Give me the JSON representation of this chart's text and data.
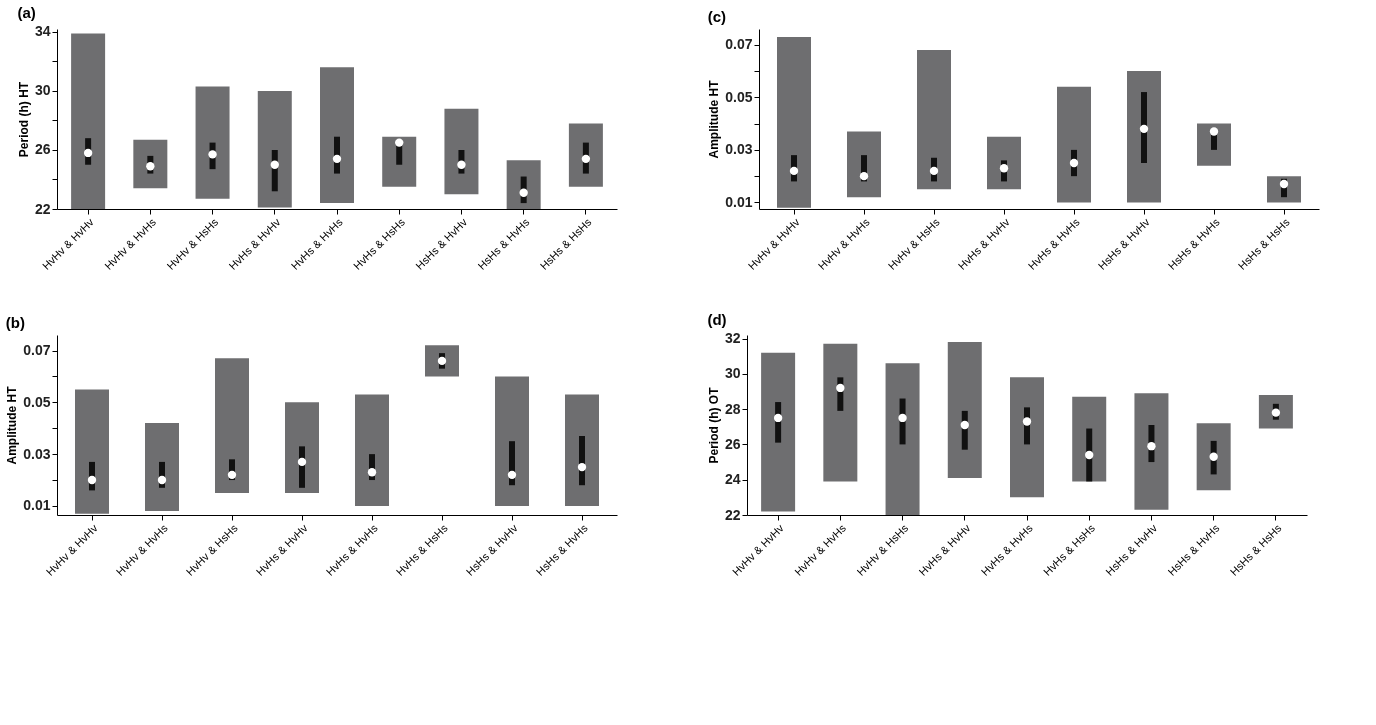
{
  "chart_data": [
    {
      "type": "box",
      "title": "(a)",
      "ylabel": "Period (h) HT",
      "grid": false,
      "categories": [
        "HvHv & HvHv",
        "HvHv & HvHs",
        "HvHv & HsHs",
        "HvHs & HvHv",
        "HvHs & HvHs",
        "HvHs & HsHs",
        "HsHs & HvHv",
        "HsHs & HvHs",
        "HsHs & HsHs"
      ],
      "ylim": [
        22,
        34.2
      ],
      "yticks": [
        22,
        {
          "value": 24,
          "label": null
        },
        26,
        {
          "value": 28,
          "label": null
        },
        30,
        {
          "value": 32,
          "label": null
        },
        34
      ],
      "series": [
        {
          "color": "#111111",
          "boxes": [
            {
              "low": 21.8,
              "q1": 25.0,
              "median": 25.8,
              "q3": 26.8,
              "high": 33.9
            },
            {
              "low": 23.4,
              "q1": 24.4,
              "median": 24.9,
              "q3": 25.6,
              "high": 26.7
            },
            {
              "low": 22.7,
              "q1": 24.7,
              "median": 25.7,
              "q3": 26.5,
              "high": 30.3
            },
            {
              "low": 22.1,
              "q1": 23.2,
              "median": 25.0,
              "q3": 26.0,
              "high": 30.0
            },
            {
              "low": 22.4,
              "q1": 24.4,
              "median": 25.4,
              "q3": 26.9,
              "high": 31.6
            },
            {
              "low": 23.5,
              "q1": 25.0,
              "median": 26.5,
              "q3": 26.7,
              "high": 26.9
            },
            {
              "low": 23.0,
              "q1": 24.4,
              "median": 25.0,
              "q3": 26.0,
              "high": 28.8
            },
            {
              "low": 22.0,
              "q1": 22.4,
              "median": 23.1,
              "q3": 24.2,
              "high": 25.3
            },
            {
              "low": 23.5,
              "q1": 24.4,
              "median": 25.4,
              "q3": 26.5,
              "high": 27.8
            }
          ]
        }
      ]
    },
    {
      "type": "box",
      "title": "(c)",
      "ylabel": "Amplitude HT",
      "grid": false,
      "categories": [
        "HvHv & HvHv",
        "HvHv & HvHs",
        "HvHv & HsHs",
        "HvHs & HvHv",
        "HvHs & HvHs",
        "HsHs & HvHv",
        "HsHs & HvHs",
        "HsHs & HsHs"
      ],
      "ylim": [
        0.0075,
        0.076
      ],
      "yticks": [
        0.01,
        {
          "value": 0.02,
          "label": null
        },
        0.03,
        {
          "value": 0.04,
          "label": null
        },
        0.05,
        {
          "value": 0.06,
          "label": null
        },
        0.07
      ],
      "series": [
        {
          "color": "#111111",
          "boxes": [
            {
              "low": 0.008,
              "q1": 0.018,
              "median": 0.022,
              "q3": 0.028,
              "high": 0.073
            },
            {
              "low": 0.012,
              "q1": 0.018,
              "median": 0.02,
              "q3": 0.028,
              "high": 0.037
            },
            {
              "low": 0.015,
              "q1": 0.018,
              "median": 0.022,
              "q3": 0.027,
              "high": 0.068
            },
            {
              "low": 0.015,
              "q1": 0.018,
              "median": 0.023,
              "q3": 0.026,
              "high": 0.035
            },
            {
              "low": 0.01,
              "q1": 0.02,
              "median": 0.025,
              "q3": 0.03,
              "high": 0.054
            },
            {
              "low": 0.01,
              "q1": 0.025,
              "median": 0.038,
              "q3": 0.052,
              "high": 0.06
            },
            {
              "low": 0.024,
              "q1": 0.03,
              "median": 0.037,
              "q3": 0.038,
              "high": 0.04
            },
            {
              "low": 0.01,
              "q1": 0.012,
              "median": 0.017,
              "q3": 0.019,
              "high": 0.02
            }
          ]
        }
      ]
    },
    {
      "type": "box",
      "title": "(b)",
      "ylabel": "Amplitude HT",
      "grid": false,
      "categories": [
        "HvHv & HvHv",
        "HvHv & HvHs",
        "HvHv & HsHs",
        "HvHs & HvHv",
        "HvHs & HvHs",
        "HvHs & HsHs",
        "HsHs & HvHv",
        "HsHs & HvHs"
      ],
      "ylim": [
        0.0065,
        0.076
      ],
      "yticks": [
        0.01,
        {
          "value": 0.02,
          "label": null
        },
        0.03,
        {
          "value": 0.04,
          "label": null
        },
        0.05,
        {
          "value": 0.06,
          "label": null
        },
        0.07
      ],
      "series": [
        {
          "color": "#111111",
          "boxes": [
            {
              "low": 0.007,
              "q1": 0.016,
              "median": 0.02,
              "q3": 0.027,
              "high": 0.055
            },
            {
              "low": 0.008,
              "q1": 0.017,
              "median": 0.02,
              "q3": 0.027,
              "high": 0.042
            },
            {
              "low": 0.015,
              "q1": 0.02,
              "median": 0.022,
              "q3": 0.028,
              "high": 0.067
            },
            {
              "low": 0.015,
              "q1": 0.017,
              "median": 0.027,
              "q3": 0.033,
              "high": 0.05
            },
            {
              "low": 0.01,
              "q1": 0.02,
              "median": 0.023,
              "q3": 0.03,
              "high": 0.053
            },
            {
              "low": 0.06,
              "q1": 0.063,
              "median": 0.066,
              "q3": 0.069,
              "high": 0.072
            },
            {
              "low": 0.01,
              "q1": 0.018,
              "median": 0.022,
              "q3": 0.035,
              "high": 0.06
            },
            {
              "low": 0.01,
              "q1": 0.018,
              "median": 0.025,
              "q3": 0.037,
              "high": 0.053
            }
          ]
        }
      ]
    },
    {
      "type": "box",
      "title": "(d)",
      "ylabel": "Period (h) OT",
      "grid": false,
      "categories": [
        "HvHv & HvHv",
        "HvHv & HvHs",
        "HvHv & HsHs",
        "HvHs & HvHv",
        "HvHs & HvHs",
        "HvHs & HsHs",
        "HsHs & HvHv",
        "HsHs & HvHs",
        "HsHs & HsHs"
      ],
      "ylim": [
        22,
        32.2
      ],
      "yticks": [
        22,
        24,
        26,
        28,
        30,
        32
      ],
      "series": [
        {
          "color": "#111111",
          "boxes": [
            {
              "low": 22.2,
              "q1": 26.1,
              "median": 27.5,
              "q3": 28.4,
              "high": 31.2
            },
            {
              "low": 23.9,
              "q1": 27.9,
              "median": 29.2,
              "q3": 29.8,
              "high": 31.7
            },
            {
              "low": 22.0,
              "q1": 26.0,
              "median": 27.5,
              "q3": 28.6,
              "high": 30.6
            },
            {
              "low": 24.1,
              "q1": 25.7,
              "median": 27.1,
              "q3": 27.9,
              "high": 31.8
            },
            {
              "low": 23.0,
              "q1": 26.0,
              "median": 27.3,
              "q3": 28.1,
              "high": 29.8
            },
            {
              "low": 23.9,
              "q1": 23.9,
              "median": 25.4,
              "q3": 26.9,
              "high": 28.7
            },
            {
              "low": 22.3,
              "q1": 25.0,
              "median": 25.9,
              "q3": 27.1,
              "high": 28.9
            },
            {
              "low": 23.4,
              "q1": 24.3,
              "median": 25.3,
              "q3": 26.2,
              "high": 27.2
            },
            {
              "low": 26.9,
              "q1": 27.4,
              "median": 27.8,
              "q3": 28.3,
              "high": 28.8
            }
          ]
        }
      ]
    }
  ]
}
